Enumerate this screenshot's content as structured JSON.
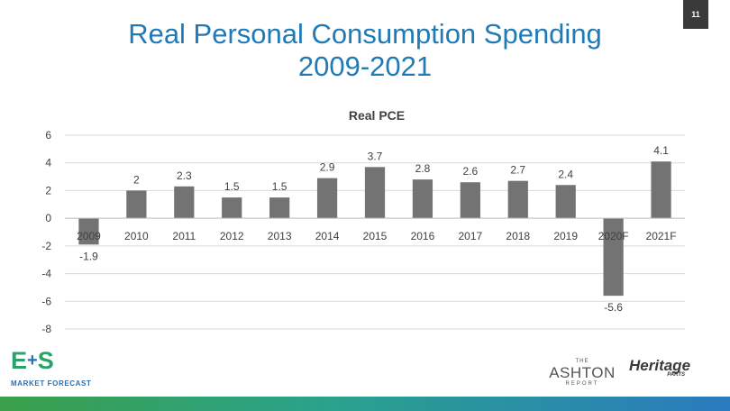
{
  "slide": {
    "number": "11"
  },
  "header": {
    "title_line1": "Real Personal Consumption Spending",
    "title_line2": "2009-2021"
  },
  "chart_data": {
    "type": "bar",
    "title": "Real PCE",
    "categories": [
      "2009",
      "2010",
      "2011",
      "2012",
      "2013",
      "2014",
      "2015",
      "2016",
      "2017",
      "2018",
      "2019",
      "2020F",
      "2021F"
    ],
    "values": [
      -1.9,
      2,
      2.3,
      1.5,
      1.5,
      2.9,
      3.7,
      2.8,
      2.6,
      2.7,
      2.4,
      -5.6,
      4.1
    ],
    "data_labels": [
      "-1.9",
      "2",
      "2.3",
      "1.5",
      "1.5",
      "2.9",
      "3.7",
      "2.8",
      "2.6",
      "2.7",
      "2.4",
      "-5.6",
      "4.1"
    ],
    "ylim": [
      -8,
      6
    ],
    "yticks": [
      6,
      4,
      2,
      0,
      -2,
      -4,
      -6,
      -8
    ],
    "grid": true,
    "legend": false,
    "bar_color": "#737373"
  },
  "logos": {
    "es": {
      "mark_left": "E",
      "mark_plus": "+",
      "mark_right": "S",
      "tagline": "MARKET FORECAST"
    },
    "ashton": {
      "the": "THE",
      "name": "ASHTON",
      "report": "REPORT"
    },
    "heritage": {
      "name": "Heritage",
      "parts": "PARTS"
    }
  },
  "colors": {
    "title": "#1f7ab8",
    "bar": "#737373",
    "grid": "#d9d9d9"
  }
}
